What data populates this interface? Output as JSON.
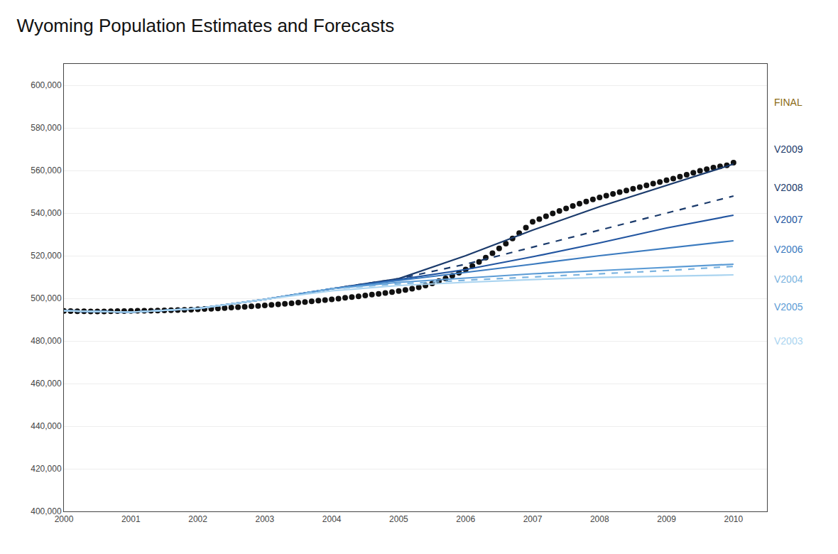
{
  "chart_data": {
    "type": "line",
    "title": "Wyoming Population Estimates and Forecasts",
    "xlim": [
      2000,
      2010.5
    ],
    "ylim": [
      400000,
      610000
    ],
    "xticks": [
      2000,
      2001,
      2002,
      2003,
      2004,
      2005,
      2006,
      2007,
      2008,
      2009,
      2010
    ],
    "yticks": [
      {
        "value": 400000,
        "label": "400,000"
      },
      {
        "value": 420000,
        "label": "420,000"
      },
      {
        "value": 440000,
        "label": "440,000"
      },
      {
        "value": 460000,
        "label": "460,000"
      },
      {
        "value": 480000,
        "label": "480,000"
      },
      {
        "value": 500000,
        "label": "500,000"
      },
      {
        "value": 520000,
        "label": "520,000"
      },
      {
        "value": 540000,
        "label": "540,000"
      },
      {
        "value": 560000,
        "label": "560,000"
      },
      {
        "value": 580000,
        "label": "580,000"
      },
      {
        "value": 600000,
        "label": "600,000"
      }
    ],
    "grid": "y",
    "series": [
      {
        "name": "FINAL",
        "color": "#111111",
        "line_style": "none",
        "marker": "circle",
        "x": [
          2000.0,
          2000.1,
          2000.2,
          2000.3,
          2000.4,
          2000.5,
          2000.6,
          2000.7,
          2000.8,
          2000.9,
          2001.0,
          2001.1,
          2001.2,
          2001.3,
          2001.4,
          2001.5,
          2001.6,
          2001.7,
          2001.8,
          2001.9,
          2002.0,
          2002.1,
          2002.2,
          2002.3,
          2002.4,
          2002.5,
          2002.6,
          2002.7,
          2002.8,
          2002.9,
          2003.0,
          2003.1,
          2003.2,
          2003.3,
          2003.4,
          2003.5,
          2003.6,
          2003.7,
          2003.8,
          2003.9,
          2004.0,
          2004.1,
          2004.2,
          2004.3,
          2004.4,
          2004.5,
          2004.6,
          2004.7,
          2004.8,
          2004.9,
          2005.0,
          2005.1,
          2005.2,
          2005.3,
          2005.4,
          2005.5,
          2005.6,
          2005.7,
          2005.8,
          2005.9,
          2006.0,
          2006.1,
          2006.2,
          2006.3,
          2006.4,
          2006.5,
          2006.6,
          2006.7,
          2006.8,
          2006.9,
          2007.0,
          2007.1,
          2007.2,
          2007.3,
          2007.4,
          2007.5,
          2007.6,
          2007.7,
          2007.8,
          2007.9,
          2008.0,
          2008.1,
          2008.2,
          2008.3,
          2008.4,
          2008.5,
          2008.6,
          2008.7,
          2008.8,
          2008.9,
          2009.0,
          2009.1,
          2009.2,
          2009.3,
          2009.4,
          2009.5,
          2009.6,
          2009.7,
          2009.8,
          2009.9,
          2010.0
        ],
        "values": [
          494094,
          494010,
          493940,
          493880,
          493850,
          493840,
          493860,
          493900,
          493960,
          494030,
          494100,
          494130,
          494160,
          494200,
          494250,
          494310,
          494390,
          494480,
          494580,
          494700,
          494830,
          494970,
          495120,
          495280,
          495450,
          495630,
          495820,
          496020,
          496230,
          496450,
          496680,
          496920,
          497170,
          497430,
          497700,
          497980,
          498270,
          498570,
          498880,
          499200,
          499530,
          499870,
          500220,
          500580,
          500950,
          501330,
          501720,
          502120,
          502530,
          502950,
          503380,
          503900,
          504500,
          505200,
          506000,
          507000,
          508100,
          509300,
          510600,
          512000,
          513500,
          515200,
          517100,
          519100,
          521200,
          523400,
          525700,
          528100,
          530600,
          533200,
          535900,
          537200,
          538500,
          539800,
          541000,
          542200,
          543300,
          544400,
          545400,
          546400,
          547300,
          548200,
          549000,
          549800,
          550600,
          551400,
          552200,
          553000,
          553800,
          554600,
          555400,
          556200,
          557100,
          558000,
          558900,
          559800,
          560600,
          561300,
          561900,
          562400,
          563626
        ]
      },
      {
        "name": "V2009",
        "color": "#1a3a6b",
        "line_style": "solid",
        "x": [
          2000,
          2001,
          2002,
          2003,
          2004,
          2005,
          2006,
          2007,
          2008,
          2009,
          2010
        ],
        "values": [
          494094,
          493500,
          495200,
          499500,
          504500,
          509200,
          520000,
          532000,
          543000,
          553000,
          563000
        ]
      },
      {
        "name": "V2008",
        "color": "#1a3a6b",
        "line_style": "dashed",
        "x": [
          2000,
          2001,
          2002,
          2003,
          2004,
          2005,
          2006,
          2007,
          2008,
          2009,
          2010
        ],
        "values": [
          494094,
          493500,
          495200,
          499500,
          504500,
          509200,
          516000,
          524000,
          532000,
          540000,
          548000
        ]
      },
      {
        "name": "V2007",
        "color": "#2255a0",
        "line_style": "solid",
        "x": [
          2000,
          2001,
          2002,
          2003,
          2004,
          2005,
          2006,
          2007,
          2008,
          2009,
          2010
        ],
        "values": [
          494094,
          493500,
          495200,
          499500,
          504500,
          508800,
          513500,
          519500,
          526000,
          533000,
          539000
        ]
      },
      {
        "name": "V2006",
        "color": "#3a7abf",
        "line_style": "solid",
        "x": [
          2000,
          2001,
          2002,
          2003,
          2004,
          2005,
          2006,
          2007,
          2008,
          2009,
          2010
        ],
        "values": [
          494094,
          493500,
          495200,
          499500,
          504500,
          508300,
          512000,
          516000,
          520000,
          523500,
          527000
        ]
      },
      {
        "name": "V2005",
        "color": "#5b9bd5",
        "line_style": "solid",
        "x": [
          2000,
          2001,
          2002,
          2003,
          2004,
          2005,
          2006,
          2007,
          2008,
          2009,
          2010
        ],
        "values": [
          494094,
          493500,
          495200,
          499500,
          504500,
          507500,
          509500,
          511500,
          513000,
          514500,
          516000
        ]
      },
      {
        "name": "V2004",
        "color": "#7ab3e0",
        "line_style": "dashed",
        "x": [
          2000,
          2001,
          2002,
          2003,
          2004,
          2005,
          2006,
          2007,
          2008,
          2009,
          2010
        ],
        "values": [
          494094,
          493500,
          495200,
          499500,
          504500,
          506800,
          508500,
          510000,
          511500,
          513000,
          515000
        ]
      },
      {
        "name": "V2003",
        "color": "#aad4f0",
        "line_style": "solid",
        "x": [
          2000,
          2001,
          2002,
          2003,
          2004,
          2005,
          2006,
          2007,
          2008,
          2009,
          2010
        ],
        "values": [
          494094,
          493500,
          495200,
          499500,
          503500,
          506000,
          507500,
          508800,
          509800,
          510500,
          511000
        ]
      }
    ],
    "annotations": [
      {
        "text": "FINAL",
        "color": "#8B6B14",
        "y": 592000
      },
      {
        "text": "V2009",
        "color": "#1a3a6b",
        "y": 570000
      },
      {
        "text": "V2008",
        "color": "#1a3a6b",
        "y": 552000
      },
      {
        "text": "V2007",
        "color": "#2255a0",
        "y": 537000
      },
      {
        "text": "V2006",
        "color": "#3a7abf",
        "y": 523000
      },
      {
        "text": "V2004",
        "color": "#7ab3e0",
        "y": 509000
      },
      {
        "text": "V2005",
        "color": "#5b9bd5",
        "y": 496000
      },
      {
        "text": "V2003",
        "color": "#aad4f0",
        "y": 480000
      }
    ]
  }
}
